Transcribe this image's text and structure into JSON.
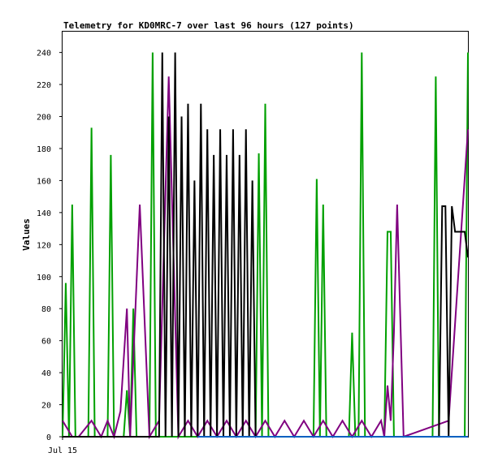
{
  "chart_data": {
    "type": "line",
    "title": "Telemetry for KD0MRC-7 over last 96 hours (127 points)",
    "ylabel": "Values",
    "x_tick_labels": [
      "Jul 15"
    ],
    "ylim": [
      0,
      253
    ],
    "y_ticks": [
      0,
      20,
      40,
      60,
      80,
      100,
      120,
      140,
      160,
      180,
      200,
      220,
      240
    ],
    "grid": false,
    "series": [
      {
        "color": "#00a000",
        "x": [
          0,
          1,
          2,
          3,
          4,
          5,
          6,
          7,
          8,
          9,
          10,
          11,
          12,
          13,
          14,
          15,
          16,
          17,
          18,
          19,
          20,
          21,
          22,
          23,
          24,
          25,
          26,
          27,
          28,
          29,
          30,
          31,
          32,
          33,
          34,
          35,
          36,
          37,
          38,
          39,
          40,
          41,
          42,
          43,
          44,
          45,
          46,
          47,
          48,
          49,
          50,
          51,
          52,
          53,
          54,
          55,
          56,
          57,
          58,
          59,
          60,
          61,
          62,
          63,
          64,
          65,
          66,
          67,
          68,
          69,
          70,
          71,
          72,
          73,
          74,
          75,
          76,
          77,
          78,
          79,
          80,
          81,
          82,
          83,
          84,
          85,
          86,
          87,
          88,
          89,
          90,
          91,
          92,
          93,
          94,
          95,
          96,
          97,
          98,
          99,
          100,
          101,
          102,
          103,
          104,
          105,
          106,
          107,
          108,
          109,
          110,
          111,
          112,
          113,
          114,
          115,
          116,
          117,
          118,
          119,
          120,
          121,
          122,
          123,
          124,
          125,
          126
        ],
        "values": [
          0,
          96,
          0,
          145,
          0,
          0,
          0,
          0,
          0,
          193,
          0,
          0,
          0,
          0,
          0,
          176,
          0,
          0,
          0,
          0,
          29,
          0,
          80,
          0,
          0,
          0,
          0,
          0,
          240,
          0,
          0,
          0,
          0,
          0,
          0,
          0,
          0,
          0,
          0,
          0,
          0,
          0,
          0,
          0,
          0,
          0,
          0,
          0,
          0,
          0,
          0,
          0,
          0,
          0,
          0,
          0,
          0,
          0,
          0,
          0,
          0,
          177,
          0,
          208,
          0,
          0,
          0,
          0,
          0,
          0,
          0,
          0,
          0,
          0,
          0,
          0,
          0,
          0,
          0,
          161,
          0,
          145,
          0,
          0,
          0,
          0,
          0,
          0,
          0,
          0,
          65,
          0,
          0,
          240,
          0,
          0,
          0,
          0,
          0,
          0,
          0,
          128,
          128,
          0,
          0,
          0,
          0,
          0,
          0,
          0,
          0,
          0,
          0,
          0,
          0,
          0,
          225,
          0,
          0,
          0,
          0,
          0,
          0,
          0,
          0,
          0,
          240
        ]
      },
      {
        "color": "#800080",
        "x": [
          0,
          3,
          5,
          9,
          12,
          14,
          16,
          18,
          20,
          21,
          24,
          27,
          30,
          33,
          36,
          39,
          42,
          45,
          48,
          51,
          54,
          57,
          60,
          63,
          66,
          69,
          72,
          75,
          78,
          81,
          84,
          87,
          90,
          93,
          96,
          99,
          100,
          101,
          102,
          103,
          104,
          106,
          120,
          126
        ],
        "values": [
          10,
          0,
          0,
          10,
          0,
          10,
          0,
          16,
          80,
          0,
          145,
          0,
          10,
          225,
          0,
          10,
          0,
          10,
          0,
          10,
          0,
          10,
          0,
          10,
          0,
          10,
          0,
          10,
          0,
          10,
          0,
          10,
          0,
          10,
          0,
          10,
          0,
          32,
          10,
          65,
          145,
          0,
          10,
          192
        ]
      },
      {
        "color": "#000000",
        "x": [
          0,
          30,
          31,
          32,
          33,
          34,
          35,
          36,
          37,
          38,
          39,
          40,
          41,
          42,
          43,
          44,
          45,
          46,
          47,
          48,
          49,
          50,
          51,
          52,
          53,
          54,
          55,
          56,
          57,
          58,
          59,
          60,
          61,
          62,
          63,
          64,
          65,
          66,
          67,
          68,
          69,
          70,
          71,
          72,
          73,
          74,
          75,
          76,
          77,
          78,
          79,
          80,
          100,
          110,
          117,
          118,
          119,
          120,
          121,
          122,
          123,
          124,
          125,
          126
        ],
        "values": [
          0,
          0,
          240,
          0,
          200,
          0,
          240,
          0,
          200,
          0,
          208,
          0,
          160,
          0,
          208,
          0,
          192,
          0,
          176,
          0,
          192,
          0,
          176,
          0,
          192,
          0,
          176,
          0,
          192,
          0,
          160,
          0,
          0,
          0,
          0,
          0,
          0,
          0,
          0,
          0,
          0,
          0,
          0,
          0,
          0,
          0,
          0,
          0,
          0,
          0,
          0,
          0,
          0,
          0,
          0,
          144,
          144,
          0,
          144,
          128,
          128,
          128,
          128,
          112
        ]
      },
      {
        "color": "#0060c0",
        "x": [
          42,
          126
        ],
        "values": [
          0,
          0
        ]
      }
    ]
  }
}
